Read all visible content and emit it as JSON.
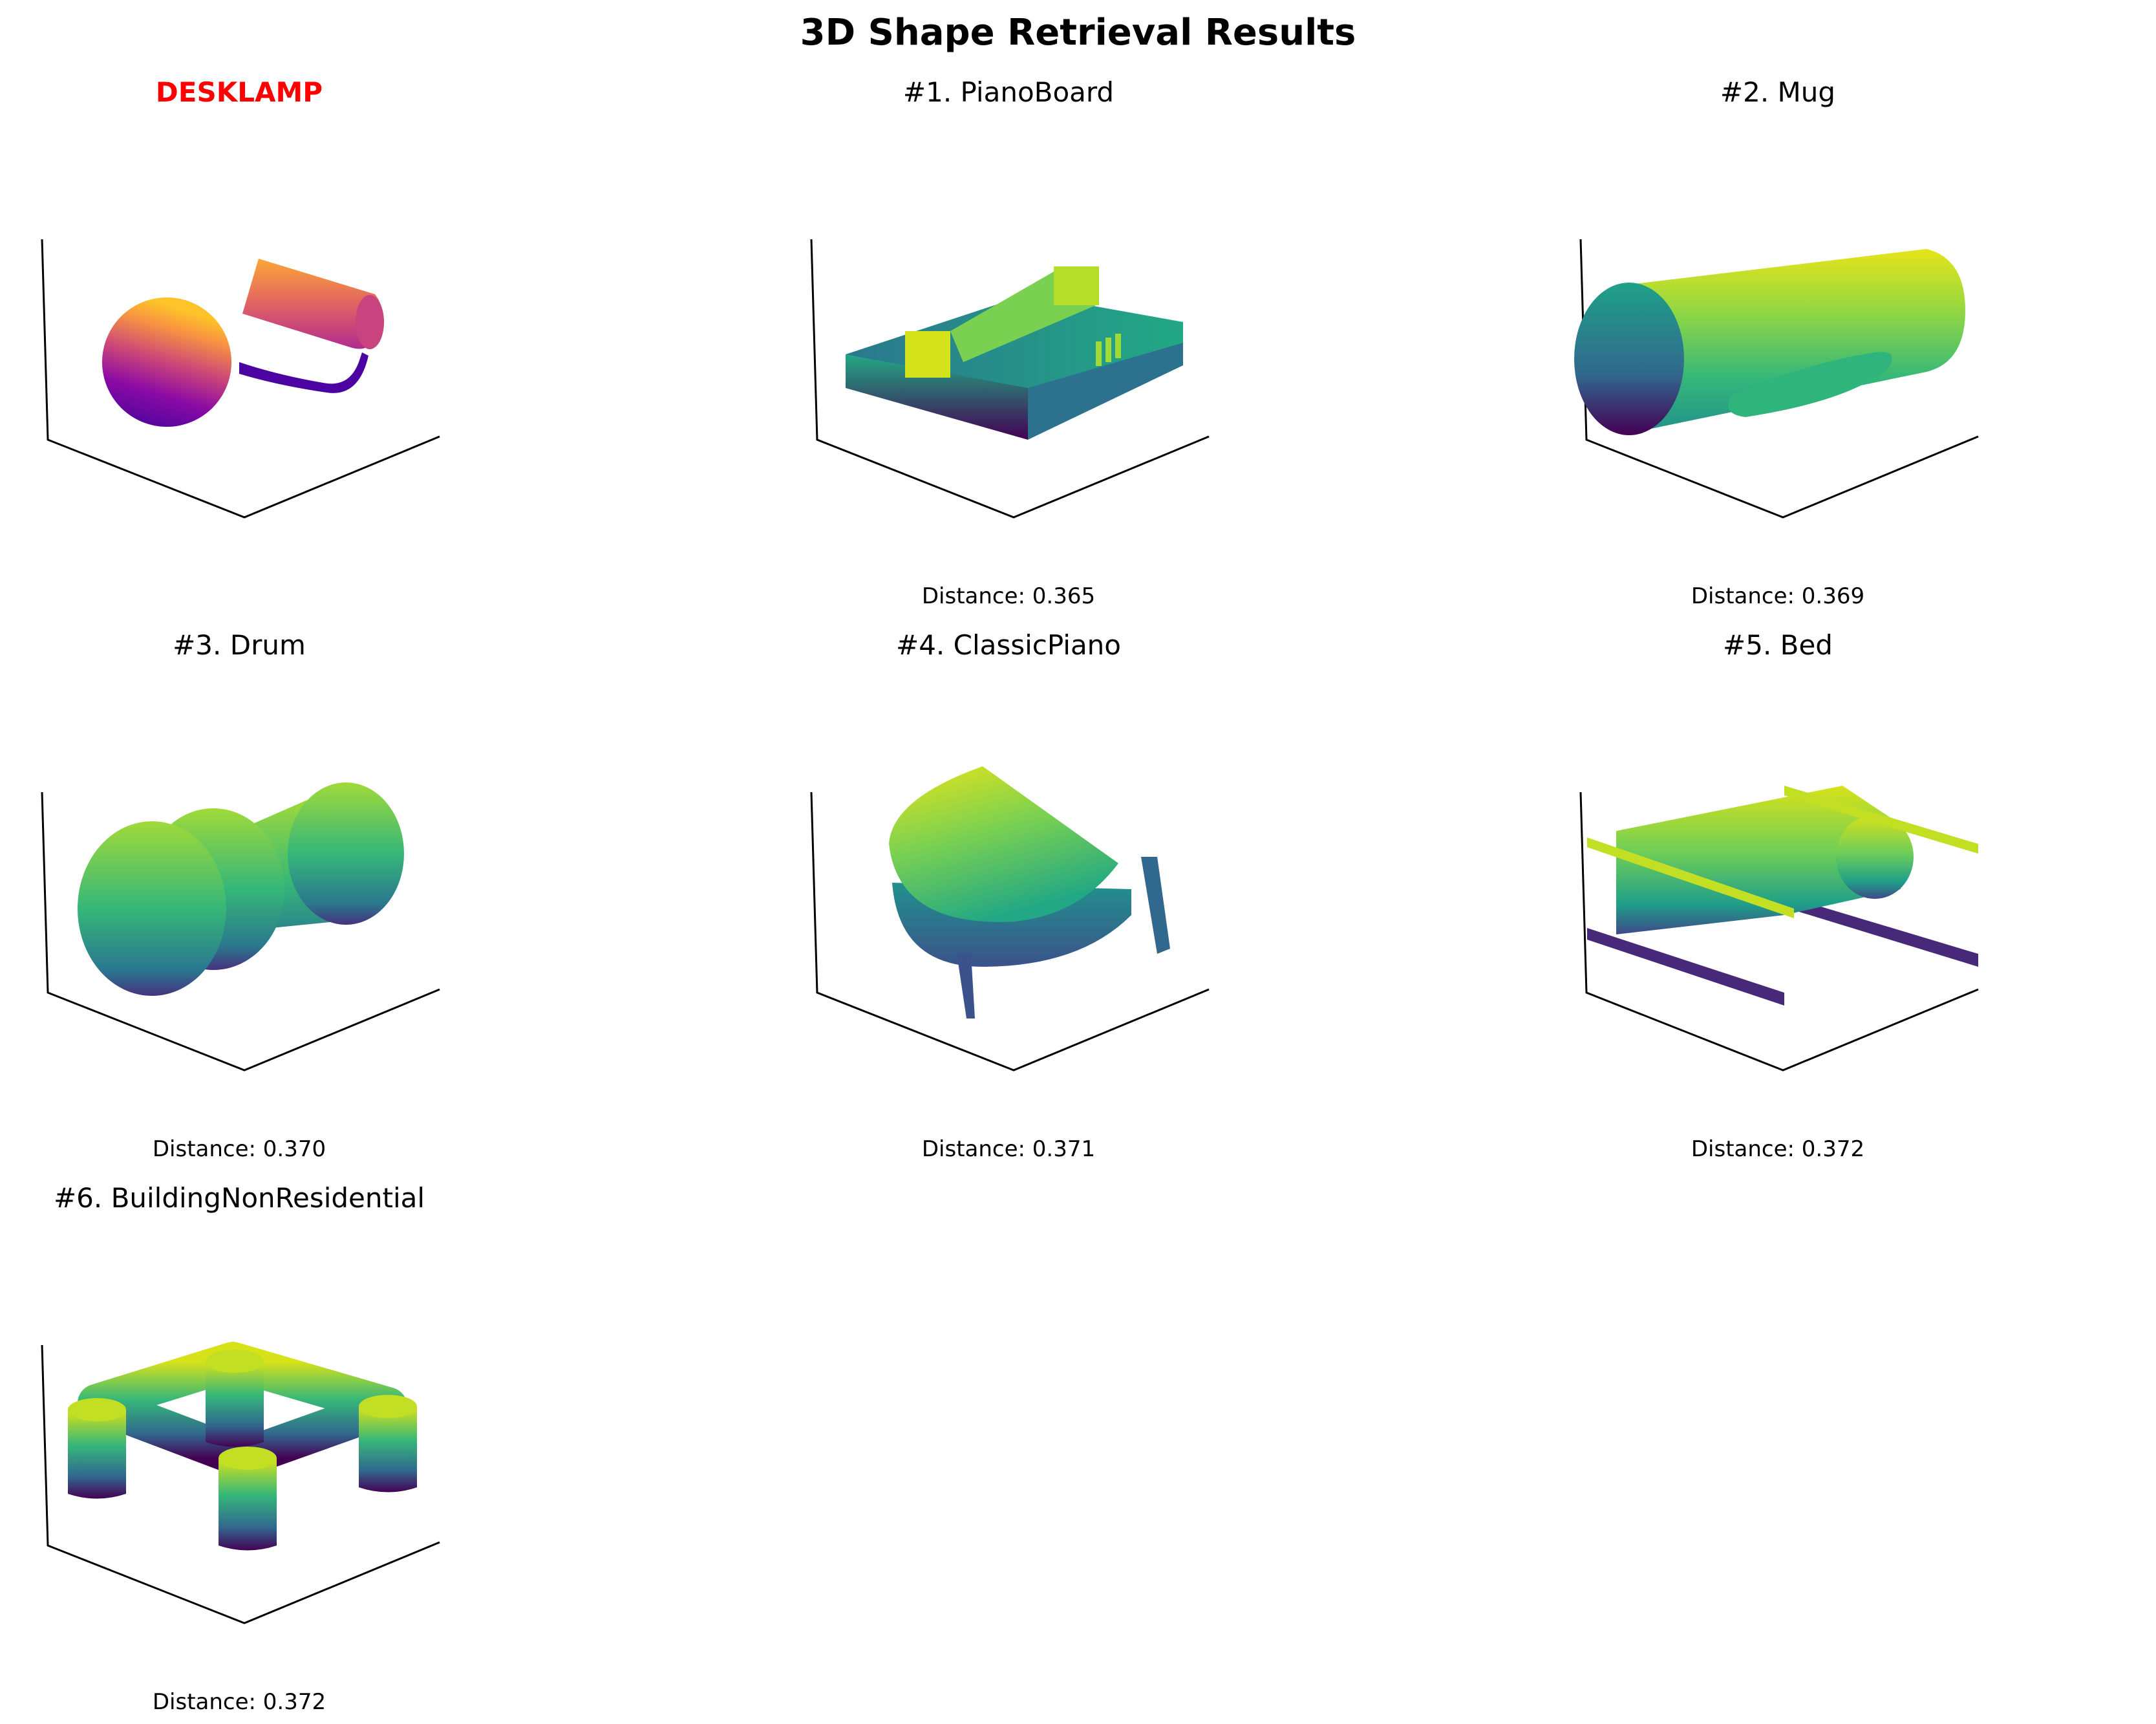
{
  "figure": {
    "title": "3D Shape Retrieval Results"
  },
  "chart_data": [
    {
      "type": "other",
      "title": "DESKLAMP",
      "shape": "desklamp",
      "colormap": "plasma",
      "query": true
    },
    {
      "type": "other",
      "title": "#1. PianoBoard",
      "shape": "pianoboard",
      "colormap": "viridis",
      "distance_label": "Distance: 0.365",
      "rank": 1,
      "distance": 0.365
    },
    {
      "type": "other",
      "title": "#2. Mug",
      "shape": "mug",
      "colormap": "viridis",
      "distance_label": "Distance: 0.369",
      "rank": 2,
      "distance": 0.369
    },
    {
      "type": "other",
      "title": "#3. Drum",
      "shape": "drum",
      "colormap": "viridis",
      "distance_label": "Distance: 0.370",
      "rank": 3,
      "distance": 0.37
    },
    {
      "type": "other",
      "title": "#4. ClassicPiano",
      "shape": "classicpiano",
      "colormap": "viridis",
      "distance_label": "Distance: 0.371",
      "rank": 4,
      "distance": 0.371
    },
    {
      "type": "other",
      "title": "#5. Bed",
      "shape": "bed",
      "colormap": "viridis",
      "distance_label": "Distance: 0.372",
      "rank": 5,
      "distance": 0.372
    },
    {
      "type": "other",
      "title": "#6. BuildingNonResidential",
      "shape": "building",
      "colormap": "viridis",
      "distance_label": "Distance: 0.372",
      "rank": 6,
      "distance": 0.372
    }
  ]
}
